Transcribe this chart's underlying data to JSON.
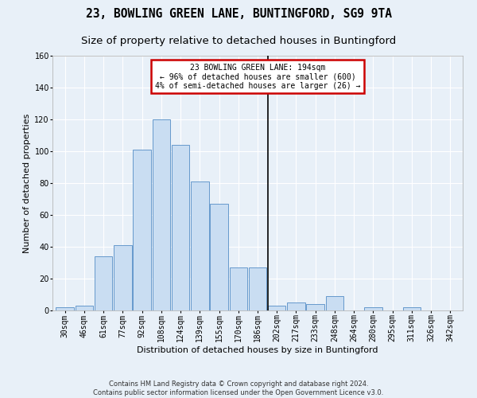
{
  "title": "23, BOWLING GREEN LANE, BUNTINGFORD, SG9 9TA",
  "subtitle": "Size of property relative to detached houses in Buntingford",
  "xlabel": "Distribution of detached houses by size in Buntingford",
  "ylabel": "Number of detached properties",
  "bar_color": "#c9ddf2",
  "bar_edge_color": "#6699cc",
  "background_color": "#e8f0f8",
  "grid_color": "#ffffff",
  "categories": [
    "30sqm",
    "46sqm",
    "61sqm",
    "77sqm",
    "92sqm",
    "108sqm",
    "124sqm",
    "139sqm",
    "155sqm",
    "170sqm",
    "186sqm",
    "202sqm",
    "217sqm",
    "233sqm",
    "248sqm",
    "264sqm",
    "280sqm",
    "295sqm",
    "311sqm",
    "326sqm",
    "342sqm"
  ],
  "values": [
    2,
    3,
    34,
    41,
    101,
    120,
    104,
    81,
    67,
    27,
    27,
    3,
    5,
    4,
    9,
    0,
    2,
    0,
    2,
    0,
    0
  ],
  "vline_color": "#000000",
  "vline_xindex": 10.55,
  "annotation_text": "23 BOWLING GREEN LANE: 194sqm\n← 96% of detached houses are smaller (600)\n4% of semi-detached houses are larger (26) →",
  "annotation_box_edgecolor": "#cc0000",
  "footer_text": "Contains HM Land Registry data © Crown copyright and database right 2024.\nContains public sector information licensed under the Open Government Licence v3.0.",
  "ylim": [
    0,
    160
  ],
  "yticks": [
    0,
    20,
    40,
    60,
    80,
    100,
    120,
    140,
    160
  ],
  "title_fontsize": 10.5,
  "subtitle_fontsize": 9.5,
  "axis_label_fontsize": 8,
  "tick_fontsize": 7,
  "footer_fontsize": 6,
  "ann_fontsize": 7
}
